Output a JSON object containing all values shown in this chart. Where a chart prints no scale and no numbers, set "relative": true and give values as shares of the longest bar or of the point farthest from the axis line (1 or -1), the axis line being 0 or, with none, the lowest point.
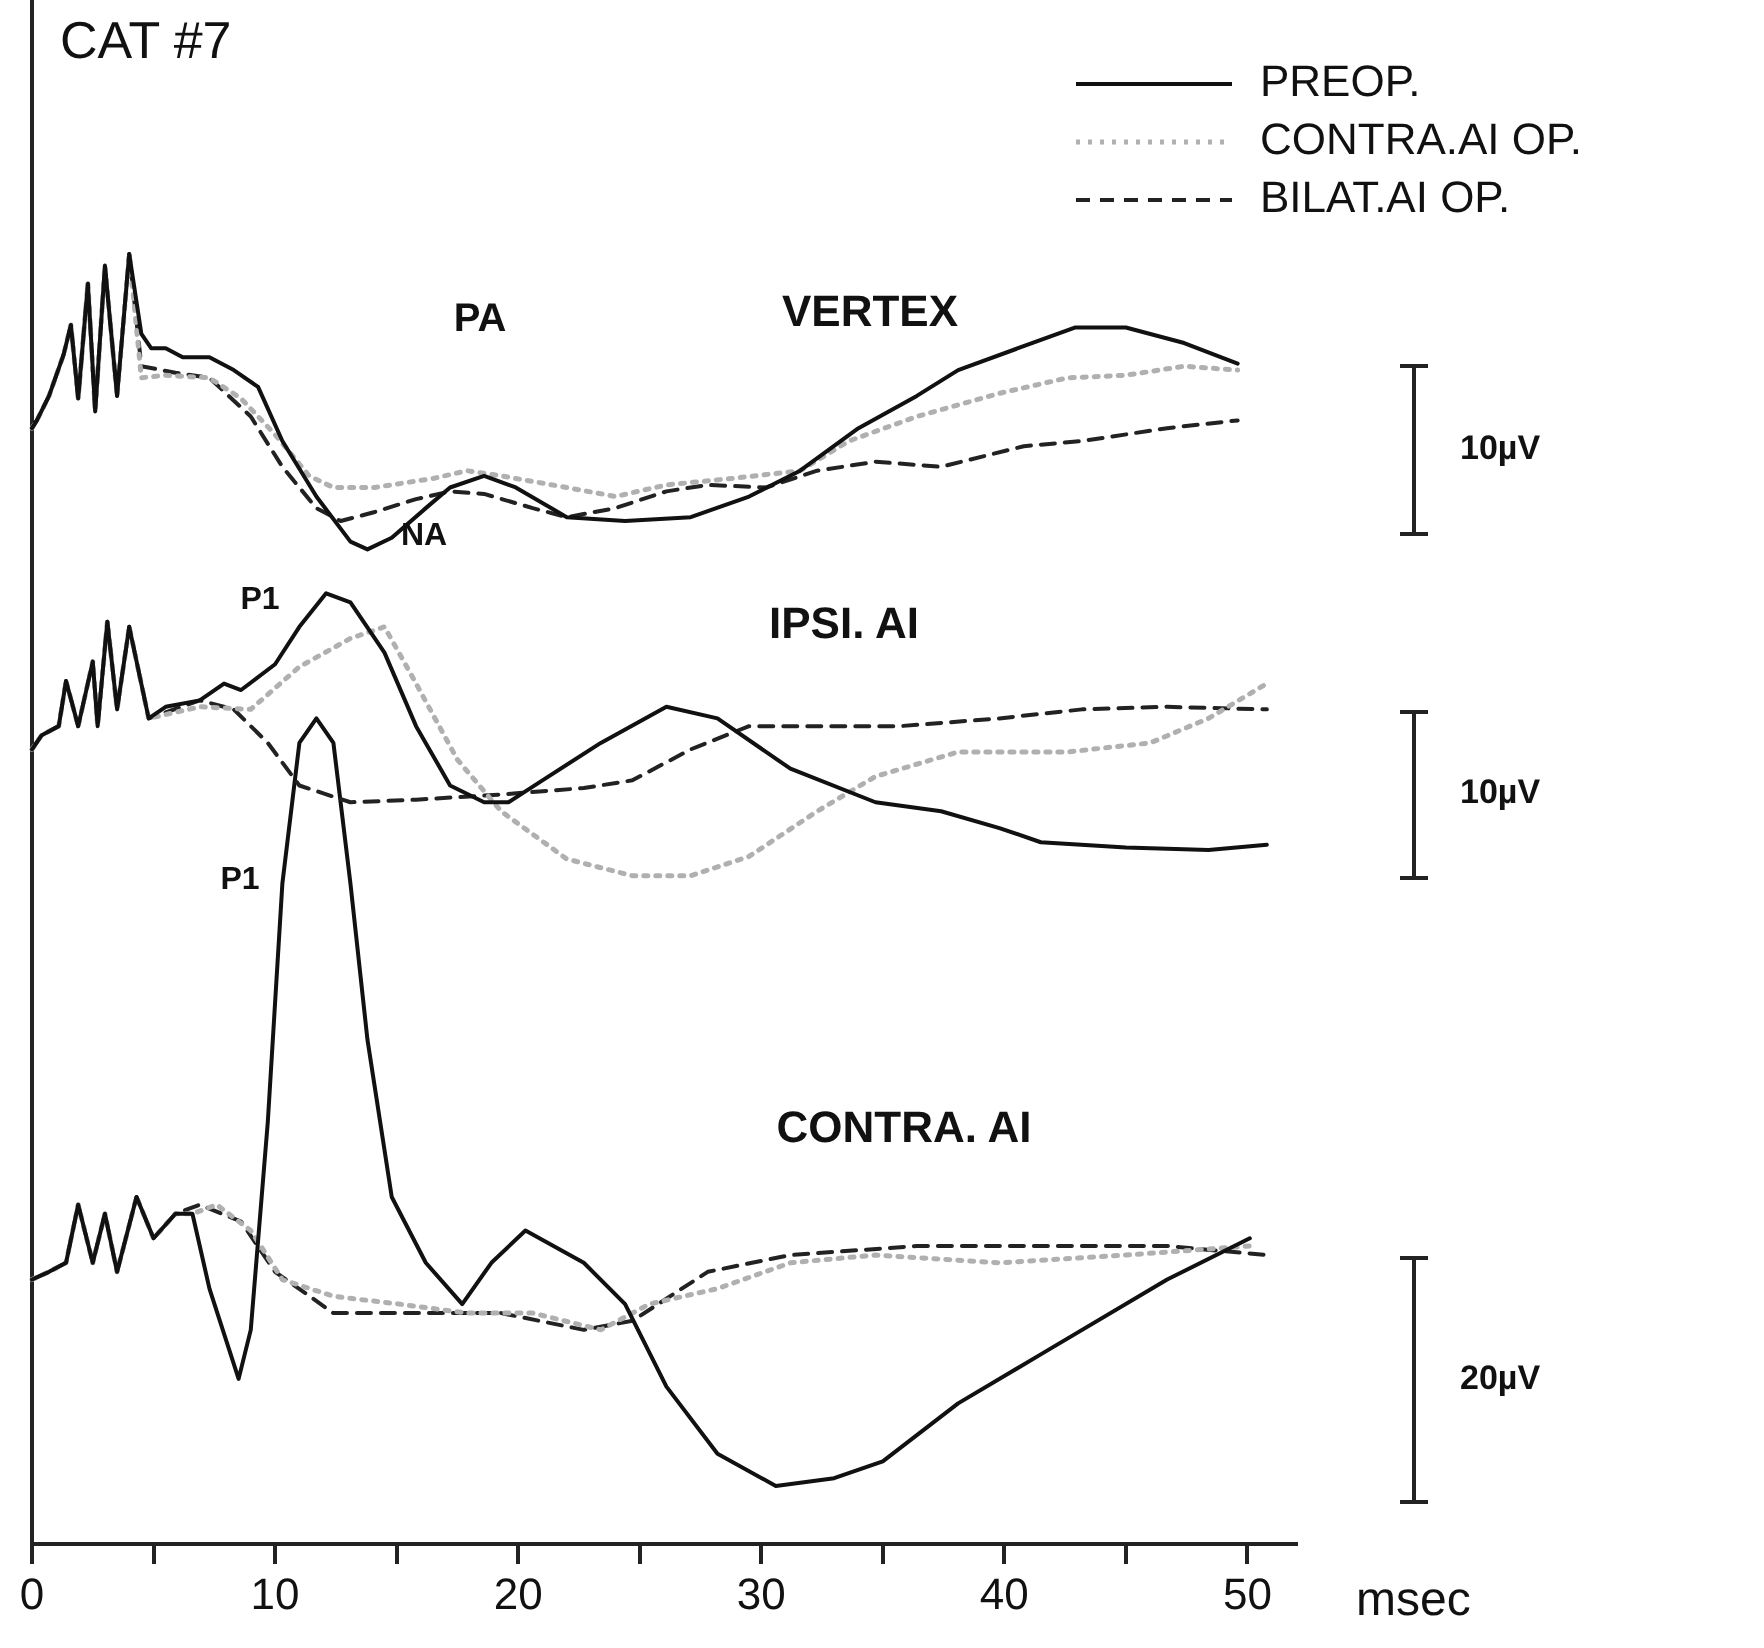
{
  "chart_data": {
    "type": "line",
    "relative": true,
    "title": "CAT #7",
    "xlabel": "msec",
    "legend": "top right",
    "xlim": [
      0,
      52
    ],
    "xticks": [
      0,
      {
        "value": 5,
        "label": null
      },
      10,
      {
        "value": 15,
        "label": null
      },
      20,
      {
        "value": 25,
        "label": null
      },
      30,
      {
        "value": 35,
        "label": null
      },
      40,
      {
        "value": 45,
        "label": null
      },
      50
    ],
    "annotations": [
      "PA",
      "NA",
      "P1",
      "P1",
      "VERTEX",
      "IPSI. AI",
      "CONTRA. AI",
      "10µV",
      "10µV",
      "20µV"
    ],
    "series": [
      {
        "name": "PREOP.",
        "color": "#111111",
        "line_style": "solid",
        "x": [
          0,
          0.2,
          0.7,
          1.3,
          1.6,
          1.9,
          2.3,
          2.6,
          3.0,
          3.5,
          4.0,
          4.5,
          4.9,
          5.5,
          6.2,
          7.3,
          8.3,
          9.3,
          10.3,
          11.7,
          13.1,
          13.8,
          14.8,
          16.2,
          17.2,
          18.6,
          19.9,
          22.0,
          24.4,
          27.1,
          29.5,
          31.6,
          34.0,
          36.4,
          38.1,
          42.9,
          45.0,
          47.4,
          49.6
        ],
        "values": [
          0.865,
          0.871,
          0.89,
          0.922,
          0.945,
          0.888,
          0.977,
          0.878,
          0.991,
          0.89,
          1,
          0.938,
          0.927,
          0.927,
          0.92,
          0.92,
          0.91,
          0.897,
          0.855,
          0.812,
          0.777,
          0.771,
          0.78,
          0.803,
          0.819,
          0.828,
          0.819,
          0.796,
          0.793,
          0.796,
          0.812,
          0.832,
          0.865,
          0.89,
          0.91,
          0.943,
          0.943,
          0.931,
          0.915
        ]
      },
      {
        "name": "CONTRA.AI OP.",
        "color": "#b0b0b0",
        "line_style": "dotted",
        "x": [
          0,
          0.2,
          0.7,
          1.3,
          1.6,
          1.9,
          2.3,
          2.6,
          3.0,
          3.5,
          4.0,
          4.5,
          5.5,
          7.3,
          8.6,
          10.0,
          11.4,
          12.4,
          14.1,
          16.5,
          17.9,
          19.3,
          22.0,
          24.0,
          26.1,
          28.8,
          31.6,
          33.6,
          36.4,
          39.8,
          42.6,
          45.0,
          47.4,
          49.6
        ],
        "values": [
          0.865,
          0.871,
          0.89,
          0.922,
          0.945,
          0.888,
          0.977,
          0.878,
          0.991,
          0.89,
          1,
          0.904,
          0.906,
          0.904,
          0.888,
          0.86,
          0.828,
          0.819,
          0.819,
          0.826,
          0.832,
          0.828,
          0.819,
          0.812,
          0.821,
          0.826,
          0.832,
          0.855,
          0.874,
          0.892,
          0.904,
          0.906,
          0.913,
          0.91
        ]
      },
      {
        "name": "BILAT.AI OP.",
        "color": "#222222",
        "line_style": "dashed",
        "x": [
          0,
          0.2,
          0.7,
          1.3,
          1.6,
          1.9,
          2.3,
          2.6,
          3.0,
          3.5,
          4.0,
          4.5,
          5.9,
          7.3,
          9.0,
          10.3,
          11.7,
          12.7,
          14.1,
          15.8,
          17.2,
          18.6,
          20.6,
          22.0,
          24.0,
          26.1,
          27.8,
          30.2,
          32.3,
          34.7,
          37.4,
          40.8,
          43.2,
          46.7,
          49.6
        ],
        "values": [
          0.865,
          0.871,
          0.89,
          0.922,
          0.945,
          0.888,
          0.977,
          0.878,
          0.991,
          0.89,
          1,
          0.913,
          0.908,
          0.904,
          0.874,
          0.835,
          0.803,
          0.793,
          0.8,
          0.81,
          0.816,
          0.814,
          0.803,
          0.796,
          0.803,
          0.816,
          0.821,
          0.819,
          0.832,
          0.839,
          0.835,
          0.851,
          0.855,
          0.865,
          0.871
        ]
      },
      {
        "color": "#111111",
        "line_style": "solid",
        "x": [
          0,
          0.4,
          1.1,
          1.4,
          1.9,
          2.5,
          2.7,
          3.1,
          3.5,
          4.0,
          4.8,
          5.5,
          6.9,
          7.9,
          8.6,
          10.0,
          11.0,
          12.1,
          13.1,
          14.5,
          15.8,
          17.2,
          18.6,
          19.6,
          21.0,
          23.4,
          26.1,
          28.2,
          31.2,
          34.7,
          37.4,
          39.8,
          41.5,
          45.0,
          48.4,
          50.8
        ],
        "values": [
          0.616,
          0.627,
          0.634,
          0.669,
          0.634,
          0.684,
          0.634,
          0.715,
          0.647,
          0.711,
          0.64,
          0.649,
          0.654,
          0.667,
          0.662,
          0.682,
          0.711,
          0.737,
          0.73,
          0.691,
          0.634,
          0.588,
          0.575,
          0.575,
          0.592,
          0.621,
          0.649,
          0.64,
          0.601,
          0.575,
          0.568,
          0.555,
          0.544,
          0.54,
          0.538,
          0.542
        ]
      },
      {
        "color": "#b0b0b0",
        "line_style": "dotted",
        "x": [
          0,
          0.4,
          1.1,
          1.4,
          1.9,
          2.5,
          2.7,
          3.1,
          3.5,
          4.0,
          4.8,
          6.9,
          9.0,
          11.0,
          13.1,
          14.5,
          15.8,
          17.5,
          19.3,
          22.0,
          24.7,
          27.1,
          29.5,
          32.3,
          34.7,
          38.1,
          42.6,
          46.0,
          48.4,
          50.8
        ],
        "values": [
          0.616,
          0.627,
          0.634,
          0.669,
          0.634,
          0.684,
          0.634,
          0.715,
          0.647,
          0.711,
          0.64,
          0.649,
          0.647,
          0.68,
          0.702,
          0.711,
          0.667,
          0.608,
          0.568,
          0.531,
          0.518,
          0.518,
          0.533,
          0.568,
          0.595,
          0.614,
          0.614,
          0.621,
          0.64,
          0.667
        ]
      },
      {
        "color": "#222222",
        "line_style": "dashed",
        "x": [
          0,
          0.4,
          1.1,
          1.4,
          1.9,
          2.5,
          2.7,
          3.1,
          3.5,
          4.0,
          4.8,
          6.9,
          8.3,
          9.7,
          11.0,
          13.1,
          15.8,
          19.3,
          22.7,
          24.7,
          27.1,
          29.5,
          33.0,
          35.7,
          39.8,
          43.2,
          46.7,
          50.8
        ],
        "values": [
          0.616,
          0.627,
          0.634,
          0.669,
          0.634,
          0.684,
          0.634,
          0.715,
          0.647,
          0.711,
          0.64,
          0.654,
          0.647,
          0.621,
          0.588,
          0.575,
          0.577,
          0.581,
          0.586,
          0.592,
          0.616,
          0.634,
          0.634,
          0.634,
          0.64,
          0.647,
          0.649,
          0.647
        ]
      },
      {
        "color": "#111111",
        "line_style": "solid",
        "x": [
          0,
          0.7,
          1.4,
          1.9,
          2.5,
          3.0,
          3.5,
          4.3,
          5.0,
          5.9,
          6.6,
          7.3,
          8.5,
          9.0,
          9.7,
          10.3,
          11.0,
          11.7,
          12.4,
          13.1,
          13.8,
          14.8,
          16.2,
          17.7,
          18.9,
          20.3,
          22.7,
          24.4,
          26.1,
          28.2,
          30.6,
          33.0,
          35.0,
          38.1,
          41.5,
          46.7,
          50.1
        ],
        "values": [
          0.205,
          0.211,
          0.218,
          0.263,
          0.218,
          0.256,
          0.211,
          0.269,
          0.237,
          0.256,
          0.256,
          0.198,
          0.128,
          0.166,
          0.327,
          0.512,
          0.621,
          0.64,
          0.621,
          0.512,
          0.391,
          0.269,
          0.218,
          0.186,
          0.218,
          0.243,
          0.218,
          0.186,
          0.122,
          0.07,
          0.045,
          0.051,
          0.064,
          0.109,
          0.147,
          0.205,
          0.237
        ]
      },
      {
        "color": "#b0b0b0",
        "line_style": "dotted",
        "x": [
          0,
          0.7,
          1.4,
          1.9,
          2.5,
          3.0,
          3.5,
          4.3,
          5.0,
          5.9,
          6.6,
          7.6,
          9.0,
          10.3,
          12.4,
          15.1,
          17.9,
          20.6,
          23.4,
          25.4,
          28.2,
          31.2,
          34.7,
          39.8,
          45.0,
          50.1
        ],
        "values": [
          0.205,
          0.211,
          0.218,
          0.263,
          0.218,
          0.256,
          0.211,
          0.269,
          0.237,
          0.256,
          0.256,
          0.263,
          0.243,
          0.205,
          0.192,
          0.186,
          0.179,
          0.179,
          0.166,
          0.186,
          0.198,
          0.218,
          0.224,
          0.218,
          0.224,
          0.231
        ]
      },
      {
        "color": "#222222",
        "line_style": "dashed",
        "x": [
          0,
          0.7,
          1.4,
          1.9,
          2.5,
          3.0,
          3.5,
          4.3,
          5.0,
          5.9,
          6.9,
          8.6,
          10.0,
          12.4,
          15.8,
          19.3,
          22.7,
          24.7,
          27.8,
          31.2,
          36.4,
          41.5,
          46.7,
          50.8
        ],
        "values": [
          0.205,
          0.211,
          0.218,
          0.263,
          0.218,
          0.256,
          0.211,
          0.269,
          0.237,
          0.256,
          0.263,
          0.25,
          0.211,
          0.179,
          0.179,
          0.179,
          0.166,
          0.173,
          0.211,
          0.224,
          0.231,
          0.231,
          0.231,
          0.224
        ]
      }
    ]
  }
}
